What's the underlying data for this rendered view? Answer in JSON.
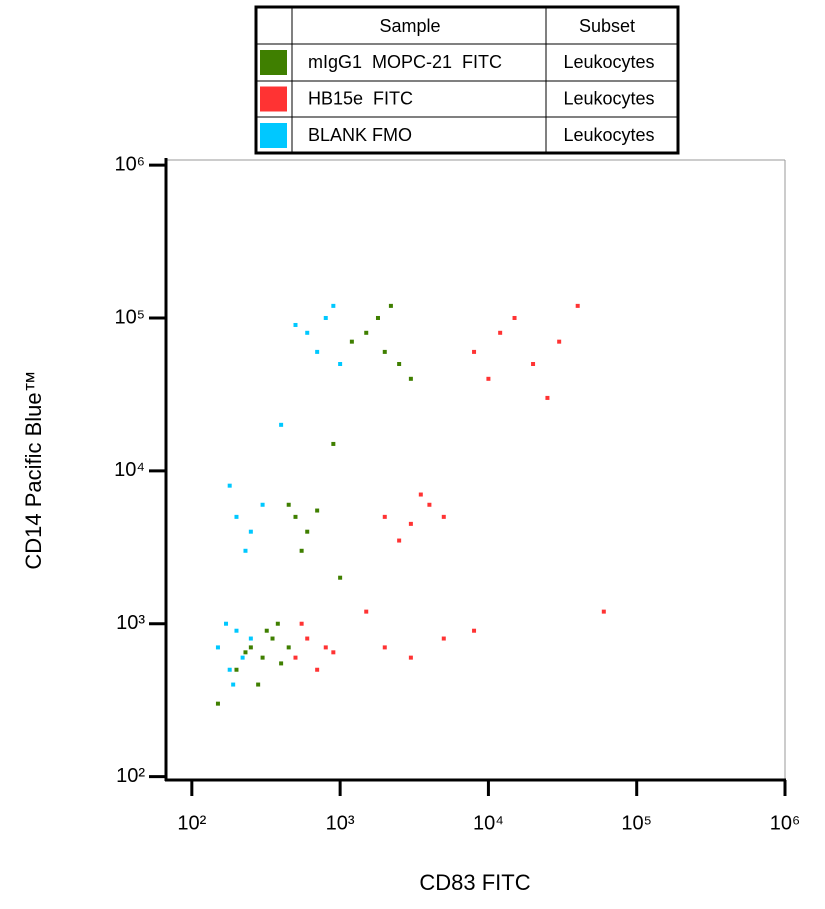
{
  "chart_data": {
    "type": "scatter",
    "legend_headers": [
      "Sample",
      "Subset"
    ],
    "x_label": "CD83 FITC",
    "y_label": "CD14 Pacific Blue™",
    "log_x": true,
    "log_y": true,
    "xlim": [
      68,
      1000000
    ],
    "ylim": [
      95,
      1080000
    ],
    "xticks": [
      {
        "value": 100,
        "label": "10²"
      },
      {
        "value": 1000,
        "label": "10³"
      },
      {
        "value": 10000,
        "label": "10⁴"
      },
      {
        "value": 100000,
        "label": "10⁵"
      },
      {
        "value": 1000000,
        "label": "10⁶"
      }
    ],
    "yticks": [
      {
        "value": 100,
        "label": "10²"
      },
      {
        "value": 1000,
        "label": "10³"
      },
      {
        "value": 10000,
        "label": "10⁴"
      },
      {
        "value": 100000,
        "label": "10⁵"
      },
      {
        "value": 1000000,
        "label": "10⁶"
      }
    ],
    "series": [
      {
        "name": "mIgG1  MOPC-21  FITC",
        "subset": "Leukocytes",
        "color": "#3f7f00",
        "x": [
          200,
          250,
          300,
          350,
          400,
          280,
          320,
          230,
          450,
          380,
          500,
          600,
          450,
          700,
          550,
          1500,
          2000,
          1800,
          2500,
          1200,
          3000,
          2200,
          150,
          900,
          1000
        ],
        "y": [
          500,
          700,
          600,
          800,
          550,
          400,
          900,
          650,
          700,
          1000,
          5000,
          4000,
          6000,
          5500,
          3000,
          80000,
          60000,
          100000,
          50000,
          70000,
          40000,
          120000,
          300,
          15000,
          2000
        ]
      },
      {
        "name": "HB15e  FITC",
        "subset": "Leukocytes",
        "color": "#ff3333",
        "x": [
          500,
          600,
          700,
          800,
          550,
          900,
          2000,
          3000,
          4000,
          2500,
          5000,
          3500,
          8000,
          12000,
          20000,
          15000,
          30000,
          10000,
          25000,
          40000,
          2000,
          3000,
          5000,
          8000,
          1500,
          60000
        ],
        "y": [
          600,
          800,
          500,
          700,
          1000,
          650,
          5000,
          4500,
          6000,
          3500,
          5000,
          7000,
          60000,
          80000,
          50000,
          100000,
          70000,
          40000,
          30000,
          120000,
          700,
          600,
          800,
          900,
          1200,
          1200
        ]
      },
      {
        "name": "BLANK FMO",
        "subset": "Leukocytes",
        "color": "#00c8ff",
        "x": [
          150,
          180,
          200,
          220,
          250,
          170,
          190,
          200,
          250,
          300,
          230,
          180,
          600,
          800,
          700,
          900,
          500,
          1000,
          400
        ],
        "y": [
          700,
          500,
          900,
          600,
          800,
          1000,
          400,
          5000,
          4000,
          6000,
          3000,
          8000,
          80000,
          100000,
          60000,
          120000,
          90000,
          50000,
          20000
        ]
      }
    ]
  }
}
